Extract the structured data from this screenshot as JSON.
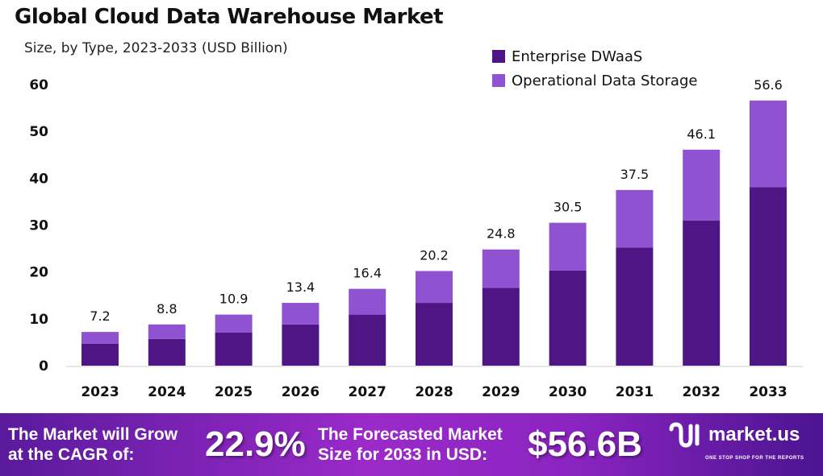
{
  "chart_data": {
    "type": "bar",
    "stacked": true,
    "title": "Global Cloud Data Warehouse Market",
    "subtitle": "Size, by Type, 2023-2033 (USD Billion)",
    "categories": [
      "2023",
      "2024",
      "2025",
      "2026",
      "2027",
      "2028",
      "2029",
      "2030",
      "2031",
      "2032",
      "2033"
    ],
    "series": [
      {
        "name": "Enterprise DWaaS",
        "color": "#4e1585",
        "values": [
          4.7,
          5.7,
          7.1,
          8.8,
          10.9,
          13.4,
          16.6,
          20.3,
          25.2,
          31.0,
          38.1
        ]
      },
      {
        "name": "Operational Data Storage",
        "color": "#8f52d1",
        "values": [
          2.5,
          3.1,
          3.8,
          4.6,
          5.5,
          6.8,
          8.2,
          10.2,
          12.3,
          15.1,
          18.5
        ]
      }
    ],
    "totals": [
      7.2,
      8.8,
      10.9,
      13.4,
      16.4,
      20.2,
      24.8,
      30.5,
      37.5,
      46.1,
      56.6
    ],
    "total_labels": [
      "7.2",
      "8.8",
      "10.9",
      "13.4",
      "16.4",
      "20.2",
      "24.8",
      "30.5",
      "37.5",
      "46.1",
      "56.6"
    ],
    "ylim": [
      0,
      60
    ],
    "yticks": [
      "0",
      "10",
      "20",
      "30",
      "40",
      "50",
      "60"
    ],
    "grid": false,
    "legend": "top-right"
  },
  "footer": {
    "cagr_text_1": "The Market will Grow",
    "cagr_text_2": "at the CAGR of:",
    "cagr_value": "22.9%",
    "forecast_text_1": "The Forecasted Market",
    "forecast_text_2": "Size for 2033 in USD:",
    "forecast_value": "$56.6B",
    "logo": "market.us",
    "tagline": "ONE STOP SHOP FOR THE REPORTS"
  }
}
